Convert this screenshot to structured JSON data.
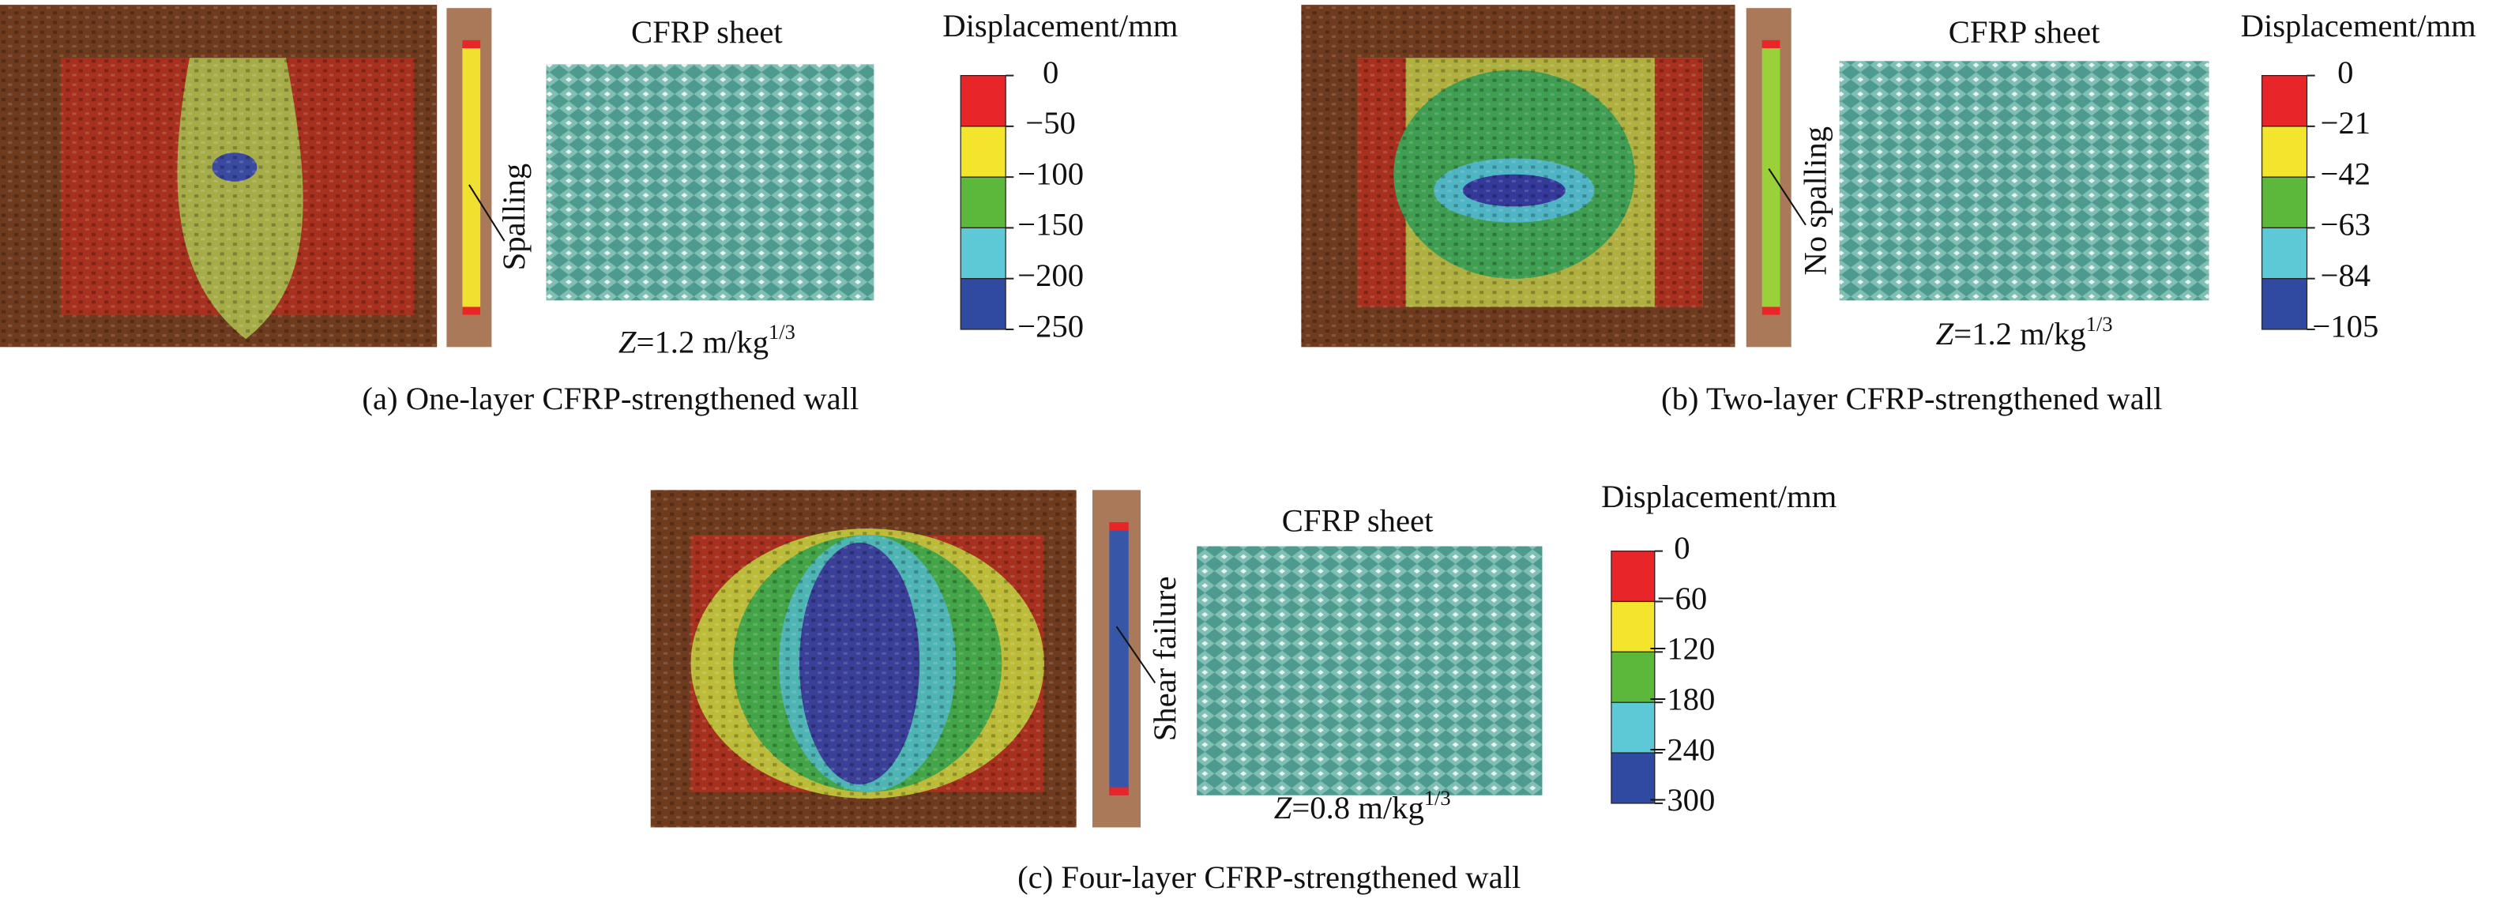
{
  "panels": [
    {
      "sheet_title": "CFRP sheet",
      "legend_title": "Displacement/mm",
      "legend_labels": [
        "0",
        "−50",
        "−100",
        "−150",
        "−200",
        "−250"
      ],
      "annotation": "Spalling",
      "z_label": {
        "symbol": "Z",
        "text": "=1.2 m/kg",
        "exponent": "1/3"
      },
      "caption": "(a) One-layer CFRP-strengthened wall"
    },
    {
      "sheet_title": "CFRP sheet",
      "legend_title": "Displacement/mm",
      "legend_labels": [
        "0",
        "−21",
        "−42",
        "−63",
        "−84",
        "−105"
      ],
      "annotation": "No spalling",
      "z_label": {
        "symbol": "Z",
        "text": "=1.2 m/kg",
        "exponent": "1/3"
      },
      "caption": "(b) Two-layer CFRP-strengthened wall"
    },
    {
      "sheet_title": "CFRP sheet",
      "legend_title": "Displacement/mm",
      "legend_labels": [
        "0",
        "−60",
        "−120",
        "−180",
        "−240",
        "−300"
      ],
      "annotation": "Shear failure",
      "z_label": {
        "symbol": "Z",
        "text": "=0.8 m/kg",
        "exponent": "1/3"
      },
      "caption": "(c) Four-layer CFRP-strengthened wall"
    }
  ]
}
